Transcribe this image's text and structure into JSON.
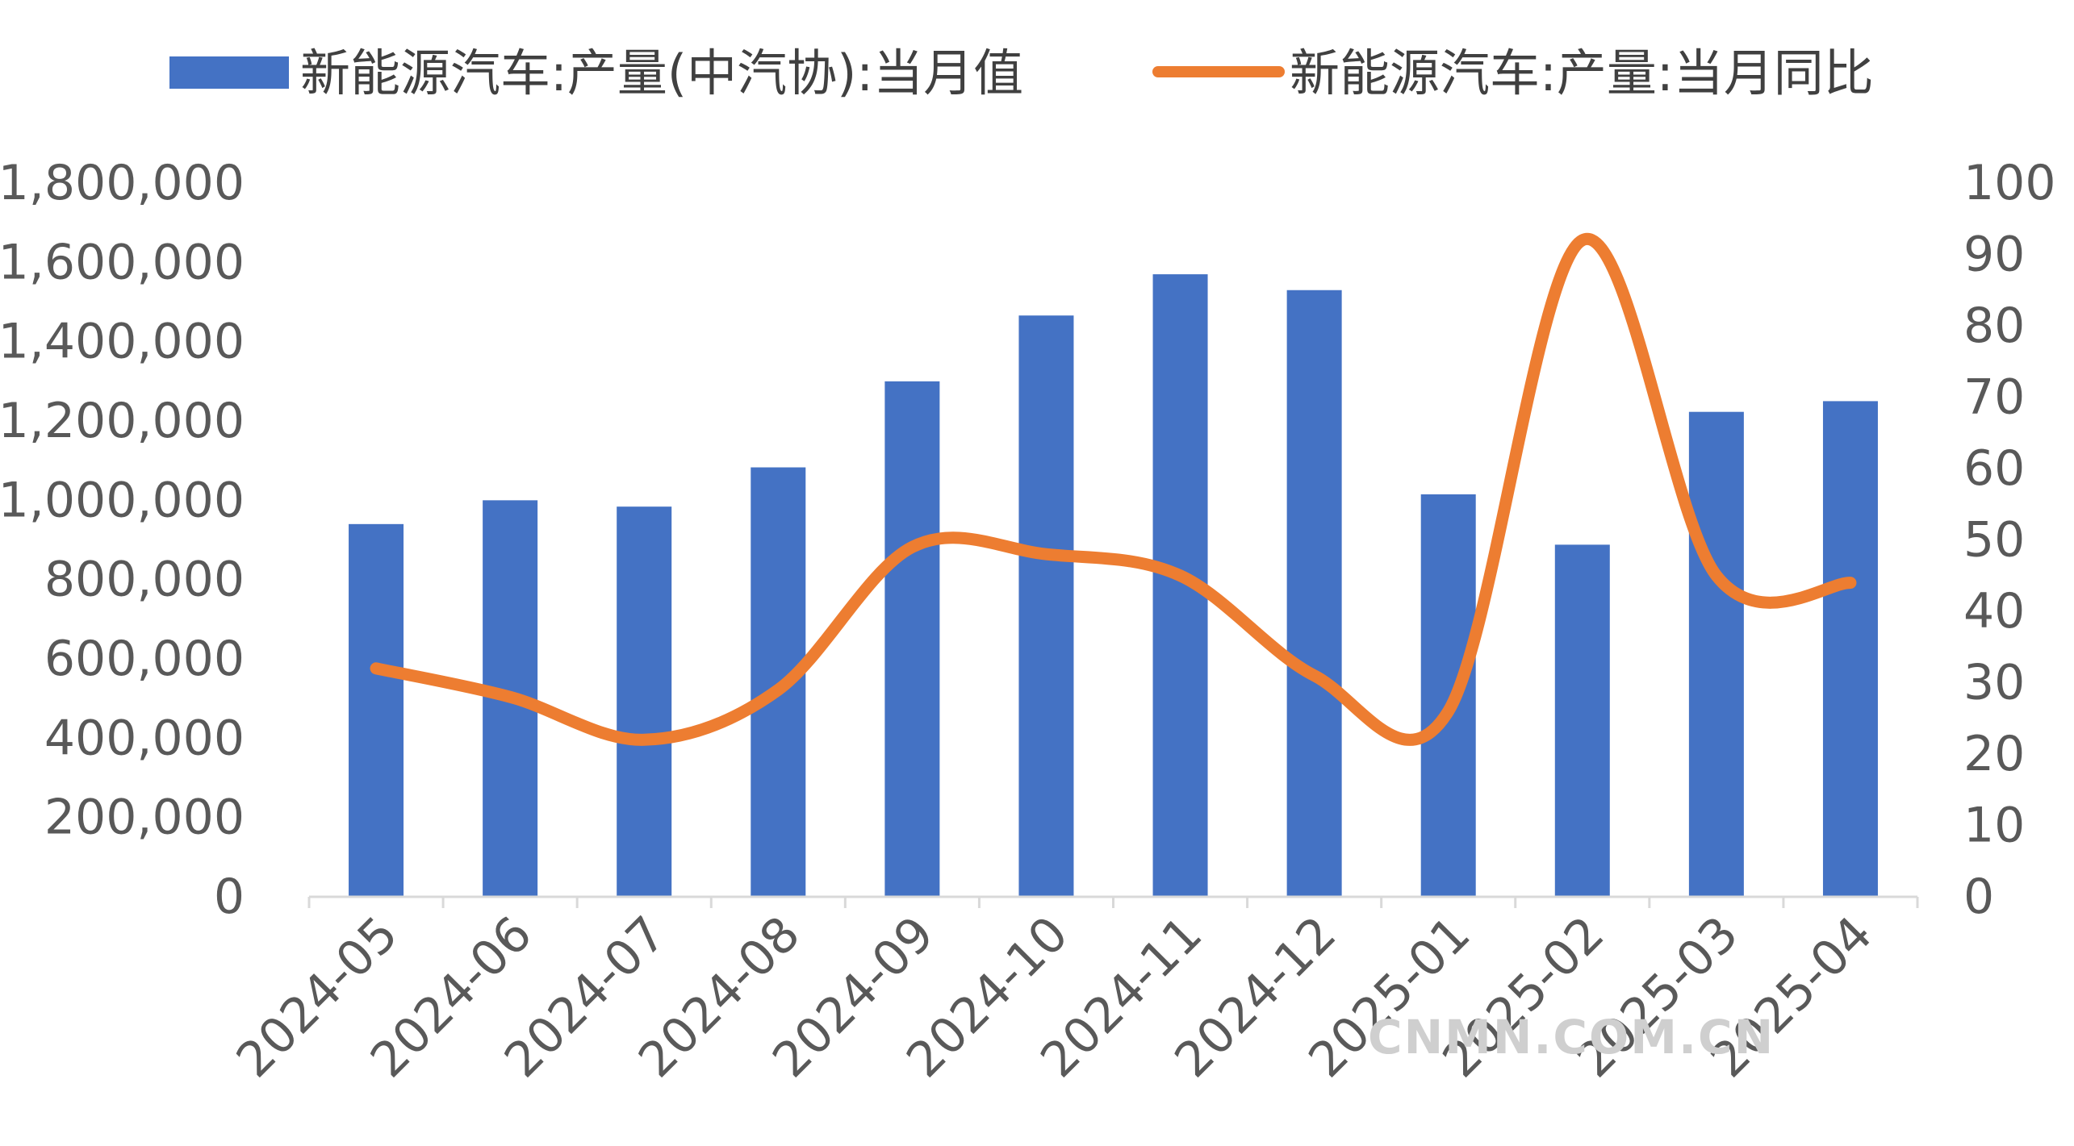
{
  "chart_data": {
    "type": "bar",
    "categories": [
      "2024-05",
      "2024-06",
      "2024-07",
      "2024-08",
      "2024-09",
      "2024-10",
      "2024-11",
      "2024-12",
      "2025-01",
      "2025-02",
      "2025-03",
      "2025-04"
    ],
    "series": [
      {
        "name": "新能源汽车:产量(中汽协):当月值",
        "type": "bar",
        "axis": "left",
        "color": "#4472C4",
        "values": [
          940000,
          1000000,
          984000,
          1083000,
          1300000,
          1466000,
          1570000,
          1530000,
          1015000,
          888000,
          1223000,
          1250000
        ]
      },
      {
        "name": "新能源汽车:产量:当月同比",
        "type": "line",
        "axis": "right",
        "color": "#ED7D31",
        "values": [
          32,
          28,
          22,
          29,
          49,
          48,
          45,
          31,
          26,
          92,
          45,
          44
        ]
      }
    ],
    "left_axis": {
      "ticks": [
        "0",
        "200,000",
        "400,000",
        "600,000",
        "800,000",
        "1,000,000",
        "1,200,000",
        "1,400,000",
        "1,600,000",
        "1,800,000"
      ],
      "ylim": [
        0,
        1800000
      ]
    },
    "right_axis": {
      "ticks": [
        "0",
        "10",
        "20",
        "30",
        "40",
        "50",
        "60",
        "70",
        "80",
        "90",
        "100"
      ],
      "ylim": [
        0,
        100
      ]
    },
    "legend_position": "top",
    "grid": false
  },
  "watermark": "CNMN.COM.CN"
}
